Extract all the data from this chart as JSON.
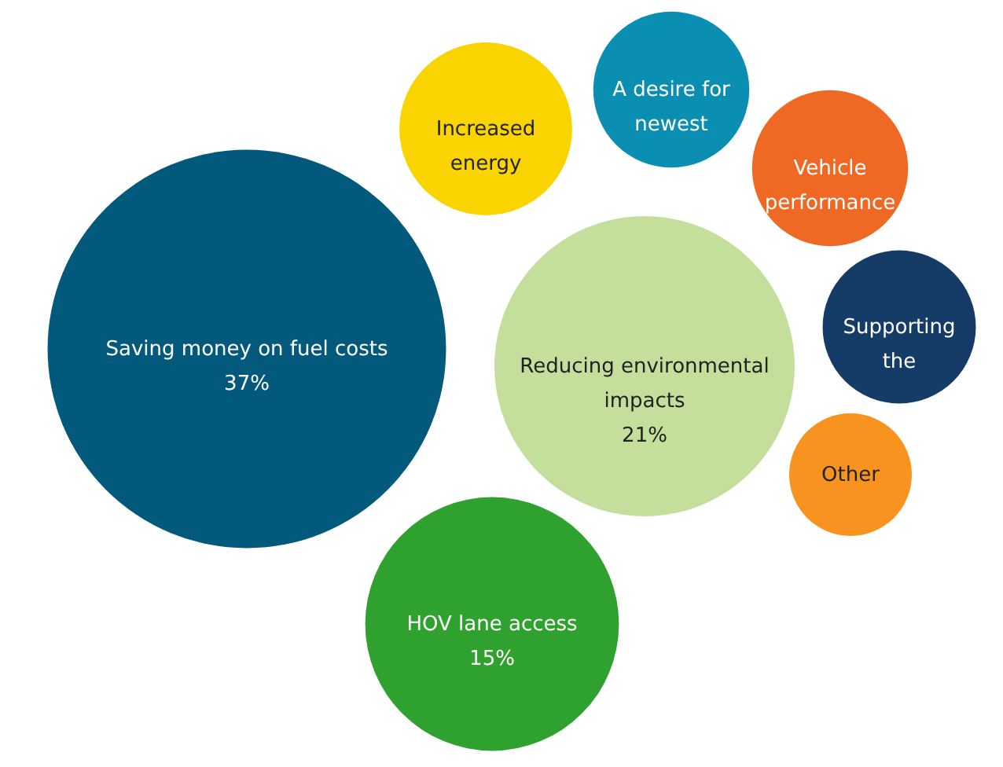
{
  "chart_data": {
    "type": "other",
    "categories": [
      "Saving money on fuel costs",
      "Reducing environmental\nimpacts",
      "HOV lane access",
      "Increased\nenergy",
      "A desire for\nnewest",
      "Vehicle\nperformance",
      "Supporting\nthe",
      "Other"
    ],
    "values": [
      37,
      21,
      15,
      null,
      null,
      null,
      null,
      null
    ],
    "value_labels": [
      "37%",
      "21%",
      "15%",
      null,
      null,
      null,
      null,
      null
    ],
    "colors": [
      "#02597c",
      "#c4df9c",
      "#2fa12f",
      "#fad400",
      "#0a8fb2",
      "#ef6924",
      "#143c66",
      "#f7931e"
    ]
  }
}
